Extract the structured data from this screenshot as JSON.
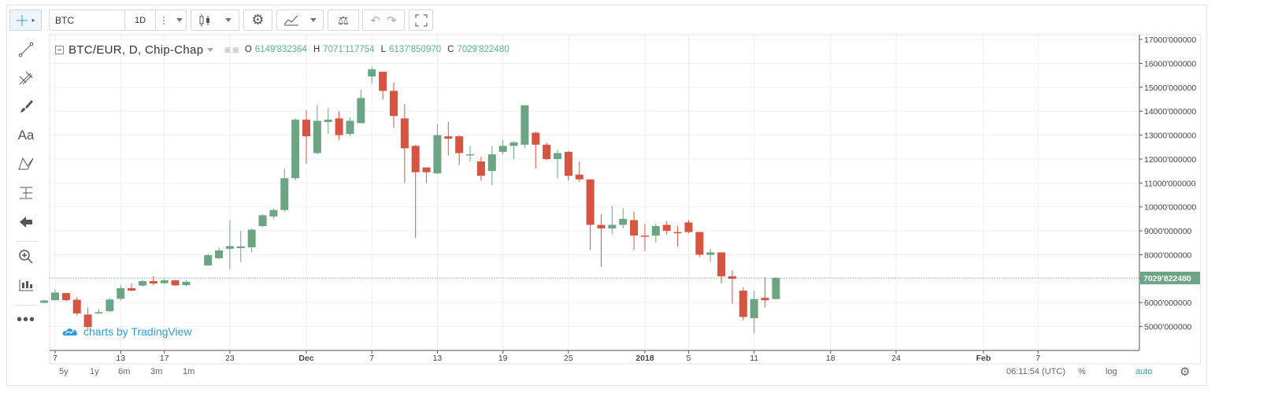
{
  "toolbar": {
    "symbol": "BTC",
    "interval": "1D",
    "icons": [
      "crosshair-icon",
      "more-vertical-icon",
      "candles-icon",
      "gear-icon",
      "indicators-icon",
      "compare-scales-icon",
      "undo-icon",
      "redo-icon",
      "fullscreen-icon"
    ]
  },
  "left_tools": [
    "crosshair-icon",
    "trend-line-icon",
    "pitchfork-icon",
    "brush-icon",
    "text-icon",
    "pattern-icon",
    "fib-icon",
    "arrow-left-icon",
    "zoom-icon",
    "measure-icon",
    "more-icon"
  ],
  "left_text_tool": "Aa",
  "legend": {
    "title": "BTC/EUR, D, Chip-Chap",
    "o_label": "O",
    "o": "6149'832364",
    "h_label": "H",
    "h": "7071'117754",
    "l_label": "L",
    "l": "6137'850970",
    "c_label": "C",
    "c": "7029'822480"
  },
  "branding": "charts by TradingView",
  "bottom": {
    "ranges": [
      "5y",
      "1y",
      "6m",
      "3m",
      "1m"
    ],
    "clock": "06:11:54 (UTC)",
    "percent": "%",
    "log": "log",
    "auto": "auto"
  },
  "colors": {
    "up": "#6ba583",
    "down": "#d75442",
    "last_price_label": "#6ba583",
    "accent": "#2f9bd9"
  },
  "chart_data": {
    "type": "candlestick",
    "title": "BTC/EUR, D, Chip-Chap",
    "y_ticks": [
      "5000'000000",
      "6000'000000",
      "7000'000000",
      "8000'000000",
      "9000'000000",
      "10000'000000",
      "11000'000000",
      "12000'000000",
      "13000'000000",
      "14000'000000",
      "15000'000000",
      "16000'000000",
      "17000'000000"
    ],
    "x_tick_labels": [
      "7",
      "13",
      "17",
      "23",
      "Dec",
      "7",
      "13",
      "19",
      "25",
      "2018",
      "5",
      "11",
      "18",
      "24",
      "Feb",
      "7"
    ],
    "x_tick_days": [
      7,
      13,
      17,
      23,
      30,
      36,
      42,
      48,
      54,
      61,
      65,
      71,
      78,
      84,
      92,
      97
    ],
    "ylim": [
      4000,
      17200
    ],
    "last_price": 7029.82,
    "last_price_label": "7029'822480",
    "candles": [
      {
        "d": 6,
        "o": 5990,
        "h": 6120,
        "l": 5960,
        "c": 6090
      },
      {
        "d": 7,
        "o": 6100,
        "h": 6550,
        "l": 6080,
        "c": 6420
      },
      {
        "d": 8,
        "o": 6400,
        "h": 6400,
        "l": 6060,
        "c": 6100
      },
      {
        "d": 9,
        "o": 6120,
        "h": 6230,
        "l": 5460,
        "c": 5550
      },
      {
        "d": 10,
        "o": 5500,
        "h": 5800,
        "l": 4880,
        "c": 4980
      },
      {
        "d": 11,
        "o": 5550,
        "h": 5730,
        "l": 5530,
        "c": 5600
      },
      {
        "d": 12,
        "o": 5640,
        "h": 6200,
        "l": 5600,
        "c": 6130
      },
      {
        "d": 13,
        "o": 6160,
        "h": 6720,
        "l": 6080,
        "c": 6600
      },
      {
        "d": 14,
        "o": 6600,
        "h": 6800,
        "l": 6480,
        "c": 6500
      },
      {
        "d": 15,
        "o": 6710,
        "h": 6950,
        "l": 6680,
        "c": 6900
      },
      {
        "d": 16,
        "o": 6900,
        "h": 7100,
        "l": 6720,
        "c": 6800
      },
      {
        "d": 17,
        "o": 6810,
        "h": 6990,
        "l": 6760,
        "c": 6930
      },
      {
        "d": 18,
        "o": 6930,
        "h": 6950,
        "l": 6700,
        "c": 6720
      },
      {
        "d": 19,
        "o": 6730,
        "h": 6950,
        "l": 6680,
        "c": 6870
      },
      {
        "d": 21,
        "o": 7550,
        "h": 8040,
        "l": 7530,
        "c": 7980
      },
      {
        "d": 22,
        "o": 7850,
        "h": 8300,
        "l": 7830,
        "c": 8180
      },
      {
        "d": 23,
        "o": 8250,
        "h": 9450,
        "l": 7400,
        "c": 8360
      },
      {
        "d": 24,
        "o": 8280,
        "h": 9000,
        "l": 7700,
        "c": 8350
      },
      {
        "d": 25,
        "o": 8310,
        "h": 9100,
        "l": 8100,
        "c": 9050
      },
      {
        "d": 26,
        "o": 9200,
        "h": 9700,
        "l": 9150,
        "c": 9650
      },
      {
        "d": 27,
        "o": 9600,
        "h": 9930,
        "l": 9500,
        "c": 9870
      },
      {
        "d": 28,
        "o": 9870,
        "h": 11600,
        "l": 9800,
        "c": 11200
      },
      {
        "d": 29,
        "o": 11200,
        "h": 13700,
        "l": 11100,
        "c": 13650
      },
      {
        "d": 30,
        "o": 13650,
        "h": 14050,
        "l": 11800,
        "c": 12950
      },
      {
        "d": 31,
        "o": 12250,
        "h": 14250,
        "l": 12200,
        "c": 13600
      },
      {
        "d": 32,
        "o": 13550,
        "h": 14150,
        "l": 13050,
        "c": 13650
      },
      {
        "d": 33,
        "o": 13700,
        "h": 14000,
        "l": 12800,
        "c": 13000
      },
      {
        "d": 34,
        "o": 13050,
        "h": 13750,
        "l": 12950,
        "c": 13600
      },
      {
        "d": 35,
        "o": 13500,
        "h": 14900,
        "l": 13500,
        "c": 14550
      },
      {
        "d": 36,
        "o": 15450,
        "h": 15850,
        "l": 15150,
        "c": 15750
      },
      {
        "d": 37,
        "o": 15650,
        "h": 15650,
        "l": 14500,
        "c": 14850
      },
      {
        "d": 38,
        "o": 14850,
        "h": 15200,
        "l": 13300,
        "c": 13800
      },
      {
        "d": 39,
        "o": 13700,
        "h": 14300,
        "l": 11000,
        "c": 12450
      },
      {
        "d": 40,
        "o": 12550,
        "h": 12600,
        "l": 8700,
        "c": 11450
      },
      {
        "d": 41,
        "o": 11650,
        "h": 11650,
        "l": 11000,
        "c": 11450
      },
      {
        "d": 42,
        "o": 11400,
        "h": 13450,
        "l": 11380,
        "c": 13000
      },
      {
        "d": 43,
        "o": 12950,
        "h": 13550,
        "l": 12150,
        "c": 12850
      },
      {
        "d": 44,
        "o": 12950,
        "h": 13000,
        "l": 11750,
        "c": 12250
      },
      {
        "d": 45,
        "o": 12150,
        "h": 12550,
        "l": 11900,
        "c": 12200
      },
      {
        "d": 46,
        "o": 11900,
        "h": 12100,
        "l": 11100,
        "c": 11300
      },
      {
        "d": 47,
        "o": 11500,
        "h": 12550,
        "l": 10900,
        "c": 12200
      },
      {
        "d": 48,
        "o": 12300,
        "h": 12800,
        "l": 12200,
        "c": 12550
      },
      {
        "d": 49,
        "o": 12550,
        "h": 12750,
        "l": 12000,
        "c": 12700
      },
      {
        "d": 50,
        "o": 12600,
        "h": 14250,
        "l": 12450,
        "c": 14250
      },
      {
        "d": 51,
        "o": 13100,
        "h": 13150,
        "l": 11600,
        "c": 12600
      },
      {
        "d": 52,
        "o": 12600,
        "h": 12700,
        "l": 11950,
        "c": 12000
      },
      {
        "d": 53,
        "o": 12000,
        "h": 12400,
        "l": 11200,
        "c": 12250
      },
      {
        "d": 54,
        "o": 12300,
        "h": 12350,
        "l": 11100,
        "c": 11300
      },
      {
        "d": 55,
        "o": 11350,
        "h": 11900,
        "l": 11050,
        "c": 11150
      },
      {
        "d": 56,
        "o": 11150,
        "h": 11150,
        "l": 8200,
        "c": 9250
      },
      {
        "d": 57,
        "o": 9250,
        "h": 9700,
        "l": 7500,
        "c": 9100
      },
      {
        "d": 58,
        "o": 9100,
        "h": 10050,
        "l": 8850,
        "c": 9250
      },
      {
        "d": 59,
        "o": 9250,
        "h": 9950,
        "l": 9100,
        "c": 9500
      },
      {
        "d": 60,
        "o": 9450,
        "h": 9800,
        "l": 8200,
        "c": 8800
      },
      {
        "d": 61,
        "o": 8800,
        "h": 9300,
        "l": 8150,
        "c": 8750
      },
      {
        "d": 62,
        "o": 8800,
        "h": 9300,
        "l": 8500,
        "c": 9200
      },
      {
        "d": 63,
        "o": 9250,
        "h": 9400,
        "l": 8850,
        "c": 9000
      },
      {
        "d": 64,
        "o": 8950,
        "h": 9200,
        "l": 8350,
        "c": 8900
      },
      {
        "d": 65,
        "o": 9350,
        "h": 9450,
        "l": 8900,
        "c": 8950
      },
      {
        "d": 66,
        "o": 8950,
        "h": 8950,
        "l": 7900,
        "c": 8000
      },
      {
        "d": 67,
        "o": 8000,
        "h": 8250,
        "l": 7700,
        "c": 8100
      },
      {
        "d": 68,
        "o": 8100,
        "h": 8100,
        "l": 6800,
        "c": 7100
      },
      {
        "d": 69,
        "o": 7100,
        "h": 7350,
        "l": 5950,
        "c": 7000
      },
      {
        "d": 70,
        "o": 6500,
        "h": 6650,
        "l": 5250,
        "c": 5400
      },
      {
        "d": 71,
        "o": 5350,
        "h": 6500,
        "l": 4700,
        "c": 6150
      },
      {
        "d": 72,
        "o": 6200,
        "h": 7050,
        "l": 5800,
        "c": 6100
      },
      {
        "d": 73,
        "o": 6150,
        "h": 7071,
        "l": 6138,
        "c": 7030
      }
    ]
  }
}
